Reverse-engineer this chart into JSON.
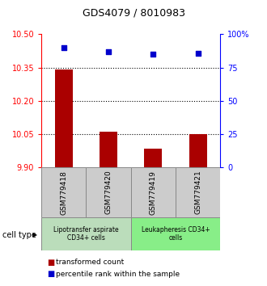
{
  "title": "GDS4079 / 8010983",
  "samples": [
    "GSM779418",
    "GSM779420",
    "GSM779419",
    "GSM779421"
  ],
  "bar_values": [
    10.34,
    10.06,
    9.985,
    10.05
  ],
  "bar_baseline": 9.9,
  "percentile_values": [
    90,
    87,
    85,
    86
  ],
  "left_ylim": [
    9.9,
    10.5
  ],
  "right_ylim": [
    0,
    100
  ],
  "left_yticks": [
    9.9,
    10.05,
    10.2,
    10.35,
    10.5
  ],
  "right_yticks": [
    0,
    25,
    50,
    75,
    100
  ],
  "right_yticklabels": [
    "0",
    "25",
    "50",
    "75",
    "100%"
  ],
  "dotted_lines": [
    10.05,
    10.2,
    10.35
  ],
  "bar_color": "#aa0000",
  "dot_color": "#0000cc",
  "cell_type_groups": [
    {
      "label": "Lipotransfer aspirate\nCD34+ cells",
      "indices": [
        0,
        1
      ],
      "color": "#bbddbb"
    },
    {
      "label": "Leukapheresis CD34+\ncells",
      "indices": [
        2,
        3
      ],
      "color": "#88ee88"
    }
  ],
  "sample_box_color": "#cccccc",
  "cell_type_label": "cell type",
  "legend_bar_label": "transformed count",
  "legend_dot_label": "percentile rank within the sample",
  "background_color": "#ffffff"
}
